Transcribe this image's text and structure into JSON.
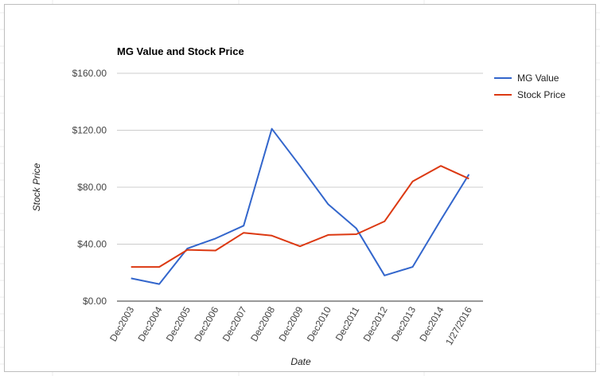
{
  "chart_data": {
    "type": "line",
    "title": "MG Value and Stock Price",
    "xlabel": "Date",
    "ylabel": "Stock Price",
    "categories": [
      "Dec2003",
      "Dec2004",
      "Dec2005",
      "Dec2006",
      "Dec2007",
      "Dec2008",
      "Dec2009",
      "Dec2010",
      "Dec2011",
      "Dec2012",
      "Dec2013",
      "Dec2014",
      "1/27/2016"
    ],
    "ylim": [
      0,
      160
    ],
    "yticks": [
      0,
      40,
      80,
      120,
      160
    ],
    "ytick_labels": [
      "$0.00",
      "$40.00",
      "$80.00",
      "$120.00",
      "$160.00"
    ],
    "grid": true,
    "legend_position": "right",
    "series": [
      {
        "name": "MG Value",
        "color": "#3366cc",
        "values": [
          16,
          12,
          37,
          44,
          53,
          121,
          95,
          68,
          51,
          18,
          24,
          57,
          89
        ]
      },
      {
        "name": "Stock Price",
        "color": "#dc3912",
        "values": [
          24,
          24,
          36,
          35.5,
          48,
          46,
          38.5,
          46.5,
          47,
          56,
          84,
          95,
          86
        ]
      }
    ]
  }
}
